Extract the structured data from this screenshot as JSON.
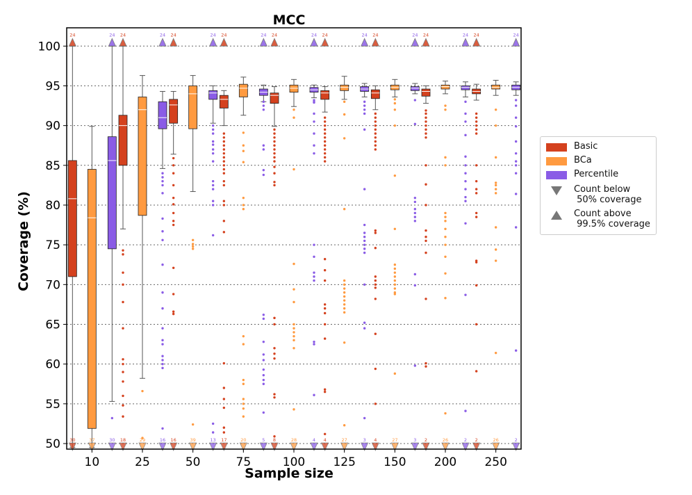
{
  "chart_data": {
    "type": "boxplot",
    "title": "MCC",
    "xlabel": "Sample size",
    "ylabel": "Coverage (%)",
    "ylim": [
      49.3,
      102.3
    ],
    "yticks": [
      50,
      55,
      60,
      65,
      70,
      75,
      80,
      85,
      90,
      95,
      100
    ],
    "grid": "horizontal dotted",
    "categories": [
      "10",
      "25",
      "50",
      "75",
      "100",
      "125",
      "150",
      "200",
      "250"
    ],
    "series": [
      {
        "name": "Basic",
        "color": "#d4411e",
        "boxes": [
          {
            "whislo": 49.5,
            "q1": 71.0,
            "med": 80.8,
            "q3": 85.6,
            "whishi": 100.0
          },
          {
            "whislo": 77.0,
            "q1": 85.0,
            "med": 90.0,
            "q3": 91.3,
            "whishi": 100.0
          },
          {
            "whislo": 86.4,
            "q1": 90.3,
            "med": 92.6,
            "q3": 93.3,
            "whishi": 94.3
          },
          {
            "whislo": 90.0,
            "q1": 92.2,
            "med": 93.3,
            "q3": 93.8,
            "whishi": 94.4
          },
          {
            "whislo": 89.9,
            "q1": 92.8,
            "med": 93.8,
            "q3": 94.1,
            "whishi": 94.9
          },
          {
            "whislo": 91.7,
            "q1": 93.3,
            "med": 94.1,
            "q3": 94.4,
            "whishi": 94.9
          },
          {
            "whislo": 92.0,
            "q1": 93.4,
            "med": 94.1,
            "q3": 94.5,
            "whishi": 95.0
          },
          {
            "whislo": 92.8,
            "q1": 93.7,
            "med": 94.3,
            "q3": 94.6,
            "whishi": 95.0
          },
          {
            "whislo": 93.2,
            "q1": 94.0,
            "med": 94.3,
            "q3": 94.6,
            "whishi": 95.2
          }
        ],
        "outliers": [
          [],
          [
            74.3,
            73.8,
            71.5,
            70.0,
            67.8,
            64.5,
            60.6,
            60.0,
            59.0,
            57.8,
            56.0,
            54.8,
            53.4
          ],
          [
            85.9,
            85.0,
            84.0,
            82.5,
            80.9,
            80.1,
            79.0,
            78.0,
            77.5,
            72.1,
            68.8,
            66.6,
            66.3
          ],
          [
            89.0,
            88.5,
            88.0,
            87.5,
            87.0,
            86.5,
            86.0,
            85.5,
            85.0,
            84.5,
            84.0,
            83.0,
            82.5,
            80.5,
            80.0,
            78.0,
            76.6,
            60.1,
            57.0,
            55.6,
            54.5,
            52.0,
            51.4
          ],
          [
            89.5,
            89.0,
            88.5,
            88.0,
            87.5,
            87.0,
            86.5,
            86.0,
            85.5,
            84.8,
            84.0,
            82.9,
            82.5,
            65.8,
            65.0,
            62.0,
            61.3,
            60.7,
            56.2,
            55.8,
            50.9
          ],
          [
            91.0,
            90.5,
            90.0,
            89.5,
            89.0,
            88.5,
            88.0,
            87.5,
            87.0,
            86.5,
            86.0,
            85.5,
            73.2,
            71.8,
            70.5,
            67.5,
            67.0,
            66.4,
            65.0,
            63.2,
            56.8,
            56.5,
            51.2
          ],
          [
            91.5,
            91.0,
            90.5,
            90.0,
            89.5,
            89.0,
            88.5,
            88.0,
            87.5,
            87.0,
            76.8,
            76.5,
            74.6,
            71.0,
            70.5,
            70.0,
            69.6,
            68.2,
            63.8,
            59.4,
            55.0
          ],
          [
            91.9,
            91.5,
            91.0,
            90.5,
            90.0,
            89.5,
            89.0,
            88.5,
            85.0,
            82.6,
            80.0,
            76.8,
            76.0,
            75.5,
            74.0,
            68.2,
            60.1,
            59.7
          ],
          [
            91.5,
            91.0,
            90.5,
            90.0,
            89.5,
            89.0,
            85.0,
            83.0,
            82.0,
            81.5,
            79.0,
            78.5,
            73.0,
            72.8,
            69.9,
            65.0,
            59.1
          ]
        ],
        "count_below_50": [
          30,
          18,
          16,
          17,
          8,
          4,
          4,
          2,
          2
        ],
        "count_above_99_5": [
          24,
          24,
          24,
          24,
          24,
          24,
          24,
          24,
          24
        ]
      },
      {
        "name": "BCa",
        "color": "#ff9a40",
        "boxes": [
          {
            "whislo": 49.5,
            "q1": 51.9,
            "med": 78.4,
            "q3": 84.5,
            "whishi": 89.9
          },
          {
            "whislo": 58.2,
            "q1": 78.7,
            "med": 92.0,
            "q3": 93.6,
            "whishi": 96.3
          },
          {
            "whislo": 81.7,
            "q1": 89.6,
            "med": 94.0,
            "q3": 95.0,
            "whishi": 96.3
          },
          {
            "whislo": 91.3,
            "q1": 93.6,
            "med": 94.7,
            "q3": 95.2,
            "whishi": 96.1
          },
          {
            "whislo": 92.4,
            "q1": 94.2,
            "med": 94.7,
            "q3": 95.1,
            "whishi": 95.8
          },
          {
            "whislo": 93.3,
            "q1": 94.4,
            "med": 94.8,
            "q3": 95.1,
            "whishi": 96.2
          },
          {
            "whislo": 93.6,
            "q1": 94.5,
            "med": 94.8,
            "q3": 95.1,
            "whishi": 95.8
          },
          {
            "whislo": 94.0,
            "q1": 94.6,
            "med": 94.9,
            "q3": 95.1,
            "whishi": 95.6
          },
          {
            "whislo": 93.8,
            "q1": 94.6,
            "med": 94.8,
            "q3": 95.1,
            "whishi": 95.7
          }
        ],
        "outliers": [
          [],
          [
            56.6,
            50.7
          ],
          [
            75.6,
            75.1,
            74.8,
            74.5,
            52.4
          ],
          [
            89.1,
            87.5,
            86.8,
            85.4,
            80.9,
            80.0,
            79.5,
            63.5,
            62.5,
            58.0,
            57.5,
            55.6,
            55.0,
            54.4,
            53.4
          ],
          [
            92.0,
            91.0,
            84.5,
            72.6,
            69.4,
            67.8,
            65.0,
            64.5,
            64.0,
            63.5,
            63.0,
            62.0,
            54.3
          ],
          [
            93.0,
            91.4,
            88.4,
            79.5,
            70.5,
            70.0,
            69.5,
            69.0,
            68.5,
            68.0,
            67.5,
            67.0,
            66.5,
            62.7,
            52.3
          ],
          [
            93.3,
            92.8,
            92.0,
            90.0,
            83.7,
            77.0,
            72.5,
            72.0,
            71.5,
            71.0,
            70.5,
            70.0,
            69.5,
            69.0,
            68.8,
            58.8
          ],
          [
            92.5,
            92.0,
            86.0,
            85.0,
            79.0,
            78.5,
            78.0,
            77.0,
            76.0,
            75.0,
            73.5,
            71.4,
            68.3,
            53.8
          ],
          [
            92.0,
            90.0,
            86.0,
            82.8,
            82.5,
            82.0,
            81.5,
            77.2,
            74.4,
            73.0,
            61.4
          ]
        ],
        "count_below_50": [
          37,
          29,
          39,
          20,
          28,
          27,
          27,
          26,
          26
        ],
        "count_above_99_5": [
          0,
          0,
          0,
          0,
          0,
          0,
          0,
          0,
          0
        ]
      },
      {
        "name": "Percentile",
        "color": "#8a5ce6",
        "boxes": [
          {
            "whislo": 55.3,
            "q1": 74.5,
            "med": 85.6,
            "q3": 88.6,
            "whishi": 100.0
          },
          {
            "whislo": 84.6,
            "q1": 89.6,
            "med": 91.0,
            "q3": 93.0,
            "whishi": 94.3
          },
          {
            "whislo": 90.3,
            "q1": 93.3,
            "med": 94.1,
            "q3": 94.4,
            "whishi": 95.0
          },
          {
            "whislo": 93.0,
            "q1": 93.8,
            "med": 94.2,
            "q3": 94.6,
            "whishi": 95.1
          },
          {
            "whislo": 93.5,
            "q1": 94.2,
            "med": 94.5,
            "q3": 94.8,
            "whishi": 95.1
          },
          {
            "whislo": 93.6,
            "q1": 94.3,
            "med": 94.6,
            "q3": 94.9,
            "whishi": 95.3
          },
          {
            "whislo": 94.0,
            "q1": 94.4,
            "med": 94.7,
            "q3": 94.9,
            "whishi": 95.3
          },
          {
            "whislo": 93.6,
            "q1": 94.5,
            "med": 94.8,
            "q3": 95.0,
            "whishi": 95.5
          },
          {
            "whislo": 93.8,
            "q1": 94.5,
            "med": 94.8,
            "q3": 95.1,
            "whishi": 95.5
          }
        ],
        "outliers": [
          [
            53.2
          ],
          [
            84.0,
            83.5,
            83.0,
            82.5,
            81.5,
            78.3,
            76.7,
            75.6,
            72.5,
            69.0,
            67.0,
            64.5,
            63.0,
            62.5,
            61.0,
            60.5,
            60.0,
            59.5,
            51.9
          ],
          [
            90.0,
            89.5,
            89.0,
            88.0,
            87.6,
            87.0,
            86.5,
            85.5,
            83.0,
            82.5,
            82.0,
            80.5,
            80.0,
            76.2,
            52.5,
            51.4
          ],
          [
            93.0,
            92.5,
            92.0,
            87.5,
            87.0,
            84.4,
            83.8,
            66.2,
            65.7,
            62.8,
            61.2,
            60.5,
            59.3,
            58.6,
            58.0,
            57.5,
            53.9
          ],
          [
            93.2,
            93.0,
            92.9,
            91.5,
            90.5,
            89.0,
            87.5,
            86.5,
            75.0,
            73.5,
            71.5,
            71.0,
            70.5,
            62.8,
            62.5,
            56.1
          ],
          [
            93.0,
            92.5,
            92.0,
            91.5,
            89.5,
            82.0,
            77.5,
            76.5,
            76.0,
            75.5,
            75.0,
            74.5,
            74.0,
            70.0,
            65.2,
            64.5,
            53.2
          ],
          [
            93.2,
            90.2,
            80.9,
            80.4,
            79.5,
            79.0,
            78.5,
            78.0,
            71.3,
            69.9,
            59.8
          ],
          [
            93.0,
            91.5,
            90.5,
            88.8,
            86.1,
            85.0,
            84.0,
            83.0,
            82.0,
            81.0,
            80.5,
            77.7,
            68.7,
            54.1
          ],
          [
            93.2,
            92.5,
            91.0,
            89.9,
            88.0,
            86.5,
            85.5,
            85.0,
            84.0,
            81.4,
            77.2,
            61.7
          ]
        ],
        "count_below_50": [
          30,
          16,
          13,
          5,
          4,
          3,
          3,
          2,
          2
        ],
        "count_above_99_5": [
          24,
          24,
          24,
          24,
          24,
          24,
          24,
          24,
          24
        ]
      }
    ],
    "legend": {
      "position": "right",
      "items": [
        {
          "kind": "patch",
          "series": "Basic",
          "label": "Basic"
        },
        {
          "kind": "patch",
          "series": "BCa",
          "label": "BCa"
        },
        {
          "kind": "patch",
          "series": "Percentile",
          "label": "Percentile"
        },
        {
          "kind": "marker-down",
          "label": "Count below\n 50% coverage"
        },
        {
          "kind": "marker-up",
          "label": "Count above\n 99.5% coverage"
        }
      ]
    }
  }
}
